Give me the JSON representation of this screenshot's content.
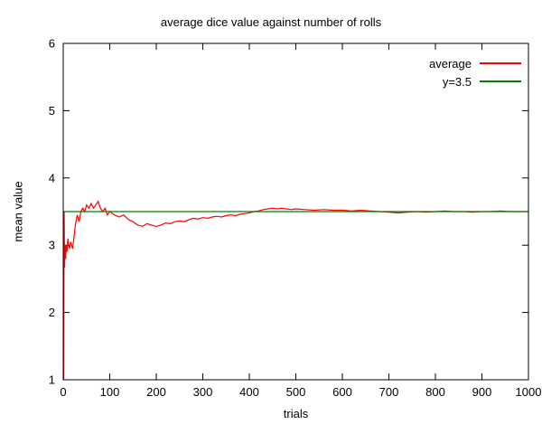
{
  "chart_data": {
    "type": "line",
    "title": "average dice value against number of rolls",
    "xlabel": "trials",
    "ylabel": "mean value",
    "xlim": [
      0,
      1000
    ],
    "ylim": [
      1,
      6
    ],
    "xticks": [
      0,
      100,
      200,
      300,
      400,
      500,
      600,
      700,
      800,
      900,
      1000
    ],
    "yticks": [
      1,
      2,
      3,
      4,
      5,
      6
    ],
    "grid": false,
    "legend_position": "top-right-inside",
    "axis_color": "#000000",
    "background_color": "#ffffff",
    "series": [
      {
        "name": "average",
        "color": "#ff0000",
        "x": [
          1,
          2,
          3,
          4,
          5,
          6,
          8,
          10,
          12,
          14,
          16,
          18,
          20,
          23,
          26,
          30,
          34,
          38,
          42,
          46,
          50,
          55,
          60,
          65,
          70,
          75,
          80,
          85,
          90,
          95,
          100,
          110,
          120,
          130,
          140,
          150,
          160,
          170,
          180,
          190,
          200,
          210,
          220,
          230,
          240,
          250,
          260,
          270,
          280,
          290,
          300,
          310,
          320,
          330,
          340,
          350,
          360,
          370,
          380,
          390,
          400,
          410,
          420,
          430,
          440,
          450,
          460,
          470,
          480,
          490,
          500,
          520,
          540,
          560,
          580,
          600,
          620,
          640,
          660,
          680,
          700,
          720,
          740,
          760,
          780,
          800,
          820,
          840,
          860,
          880,
          900,
          920,
          940,
          960,
          980,
          1000
        ],
        "y": [
          1.0,
          3.5,
          2.67,
          3.0,
          2.8,
          3.0,
          2.9,
          3.1,
          3.0,
          2.95,
          3.05,
          3.0,
          2.95,
          3.1,
          3.3,
          3.45,
          3.35,
          3.5,
          3.55,
          3.5,
          3.6,
          3.55,
          3.62,
          3.55,
          3.6,
          3.65,
          3.55,
          3.5,
          3.55,
          3.45,
          3.5,
          3.45,
          3.42,
          3.45,
          3.38,
          3.35,
          3.3,
          3.28,
          3.32,
          3.3,
          3.28,
          3.3,
          3.33,
          3.32,
          3.35,
          3.36,
          3.35,
          3.38,
          3.4,
          3.39,
          3.41,
          3.4,
          3.42,
          3.43,
          3.42,
          3.44,
          3.45,
          3.44,
          3.46,
          3.47,
          3.48,
          3.5,
          3.51,
          3.53,
          3.54,
          3.55,
          3.54,
          3.55,
          3.54,
          3.53,
          3.54,
          3.53,
          3.52,
          3.53,
          3.52,
          3.52,
          3.51,
          3.52,
          3.51,
          3.5,
          3.49,
          3.48,
          3.49,
          3.5,
          3.49,
          3.5,
          3.51,
          3.5,
          3.5,
          3.49,
          3.5,
          3.5,
          3.51,
          3.5,
          3.5,
          3.5
        ]
      },
      {
        "name": "y=3.5",
        "color": "#008000",
        "x": [
          0,
          1000
        ],
        "y": [
          3.5,
          3.5
        ]
      }
    ]
  }
}
